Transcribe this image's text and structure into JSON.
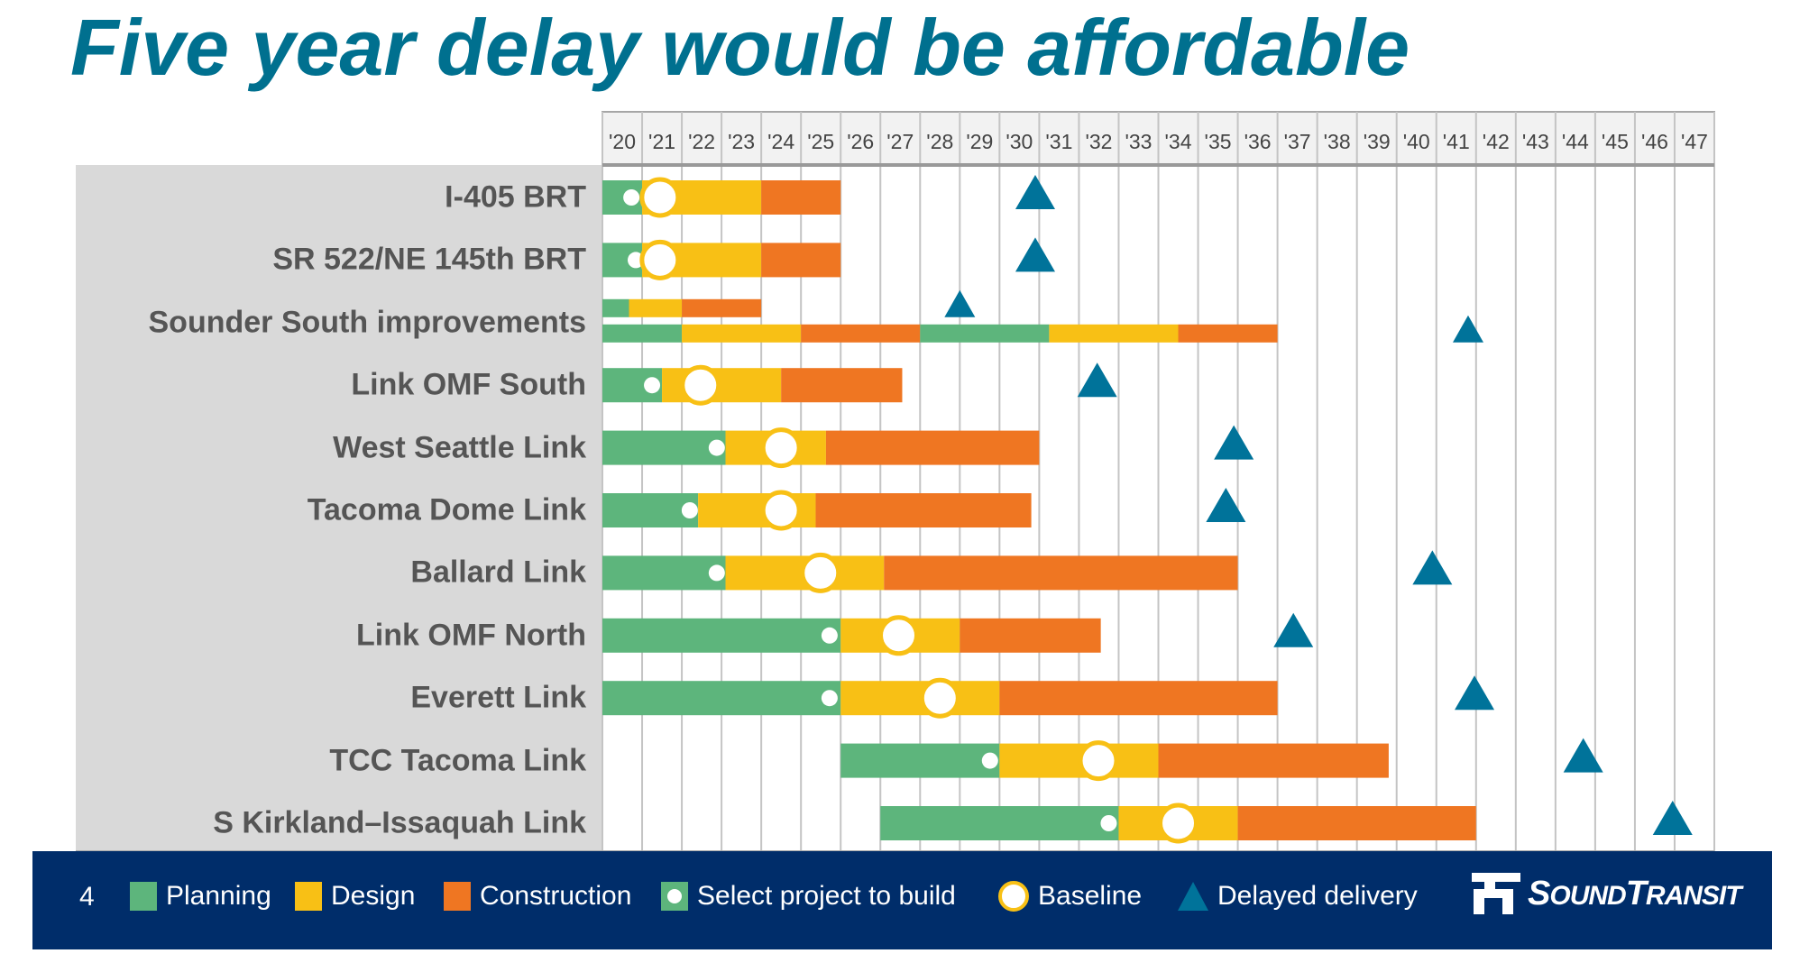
{
  "title": "Five year delay would be affordable",
  "page_number": "4",
  "logo_text": "SoundTransit",
  "colors": {
    "planning": "#5db57c",
    "design": "#f8c015",
    "construction": "#ef7622",
    "delayed": "#00739a",
    "title": "#00708f",
    "footer": "#002d6a"
  },
  "legend": {
    "planning": "Planning",
    "design": "Design",
    "construction": "Construction",
    "select": "Select project to build",
    "baseline": "Baseline",
    "delayed": "Delayed delivery"
  },
  "chart_data": {
    "type": "gantt",
    "title": "Five year delay would be affordable",
    "x_ticks": [
      "'20",
      "'21",
      "'22",
      "'23",
      "'24",
      "'25",
      "'26",
      "'27",
      "'28",
      "'29",
      "'30",
      "'31",
      "'32",
      "'33",
      "'34",
      "'35",
      "'36",
      "'37",
      "'38",
      "'39",
      "'40",
      "'41",
      "'42",
      "'43",
      "'44",
      "'45",
      "'46",
      "'47"
    ],
    "xlim": [
      2020,
      2048
    ],
    "grid": true,
    "legend_position": "bottom",
    "rows": [
      {
        "name": "I-405 BRT",
        "tracks": [
          {
            "segments": [
              [
                "planning",
                2020,
                2021
              ],
              [
                "design",
                2021,
                2024
              ],
              [
                "construction",
                2024,
                2026
              ]
            ],
            "delayed": 2030.9
          }
        ],
        "select": 2020.73,
        "baseline": 2021.45
      },
      {
        "name": "SR 522/NE 145th BRT",
        "tracks": [
          {
            "segments": [
              [
                "planning",
                2020,
                2021
              ],
              [
                "design",
                2021,
                2024
              ],
              [
                "construction",
                2024,
                2026
              ]
            ],
            "delayed": 2030.9
          }
        ],
        "select": 2020.84,
        "baseline": 2021.45
      },
      {
        "name": "Sounder South improvements",
        "tracks": [
          {
            "segments": [
              [
                "planning",
                2020,
                2020.67
              ],
              [
                "design",
                2020.67,
                2022
              ],
              [
                "construction",
                2022,
                2024
              ]
            ],
            "delayed": 2029.0
          },
          {
            "segments": [
              [
                "planning",
                2020,
                2022
              ],
              [
                "design",
                2022,
                2025
              ],
              [
                "construction",
                2025,
                2028
              ],
              [
                "planning",
                2028,
                2031.25
              ],
              [
                "design",
                2031.25,
                2034.5
              ],
              [
                "construction",
                2034.5,
                2037
              ]
            ],
            "delayed": 2041.8
          }
        ]
      },
      {
        "name": "Link OMF South",
        "tracks": [
          {
            "segments": [
              [
                "planning",
                2020,
                2021.5
              ],
              [
                "design",
                2021.5,
                2024.5
              ],
              [
                "construction",
                2024.5,
                2027.55
              ]
            ],
            "delayed": 2032.46
          }
        ],
        "select": 2021.25,
        "baseline": 2022.47
      },
      {
        "name": "West Seattle Link",
        "tracks": [
          {
            "segments": [
              [
                "planning",
                2020,
                2023.1
              ],
              [
                "design",
                2023.1,
                2025.63
              ],
              [
                "construction",
                2025.63,
                2031
              ]
            ],
            "delayed": 2035.9
          }
        ],
        "select": 2022.88,
        "baseline": 2024.5
      },
      {
        "name": "Tacoma Dome Link",
        "tracks": [
          {
            "segments": [
              [
                "planning",
                2020,
                2022.41
              ],
              [
                "design",
                2022.41,
                2025.37
              ],
              [
                "construction",
                2025.37,
                2030.8
              ]
            ],
            "delayed": 2035.7
          }
        ],
        "select": 2022.2,
        "baseline": 2024.5
      },
      {
        "name": "Ballard Link",
        "tracks": [
          {
            "segments": [
              [
                "planning",
                2020,
                2023.1
              ],
              [
                "design",
                2023.1,
                2027.09
              ],
              [
                "construction",
                2027.09,
                2036
              ]
            ],
            "delayed": 2040.9
          }
        ],
        "select": 2022.88,
        "baseline": 2025.49
      },
      {
        "name": "Link OMF North",
        "tracks": [
          {
            "segments": [
              [
                "planning",
                2020,
                2026
              ],
              [
                "design",
                2026,
                2029
              ],
              [
                "construction",
                2029,
                2032.55
              ]
            ],
            "delayed": 2037.4
          }
        ],
        "select": 2025.72,
        "baseline": 2027.46
      },
      {
        "name": "Everett Link",
        "tracks": [
          {
            "segments": [
              [
                "planning",
                2020,
                2026
              ],
              [
                "design",
                2026,
                2030
              ],
              [
                "construction",
                2030,
                2037
              ]
            ],
            "delayed": 2041.96
          }
        ],
        "select": 2025.72,
        "baseline": 2028.5
      },
      {
        "name": "TCC Tacoma Link",
        "tracks": [
          {
            "segments": [
              [
                "planning",
                2026,
                2030
              ],
              [
                "design",
                2030,
                2034
              ],
              [
                "construction",
                2034,
                2039.8
              ]
            ],
            "delayed": 2044.7
          }
        ],
        "select": 2029.76,
        "baseline": 2032.49
      },
      {
        "name": "S Kirkland–Issaquah Link",
        "tracks": [
          {
            "segments": [
              [
                "planning",
                2027,
                2033
              ],
              [
                "design",
                2033,
                2036
              ],
              [
                "construction",
                2036,
                2042
              ]
            ],
            "delayed": 2046.95
          }
        ],
        "select": 2032.75,
        "baseline": 2034.5
      }
    ]
  }
}
